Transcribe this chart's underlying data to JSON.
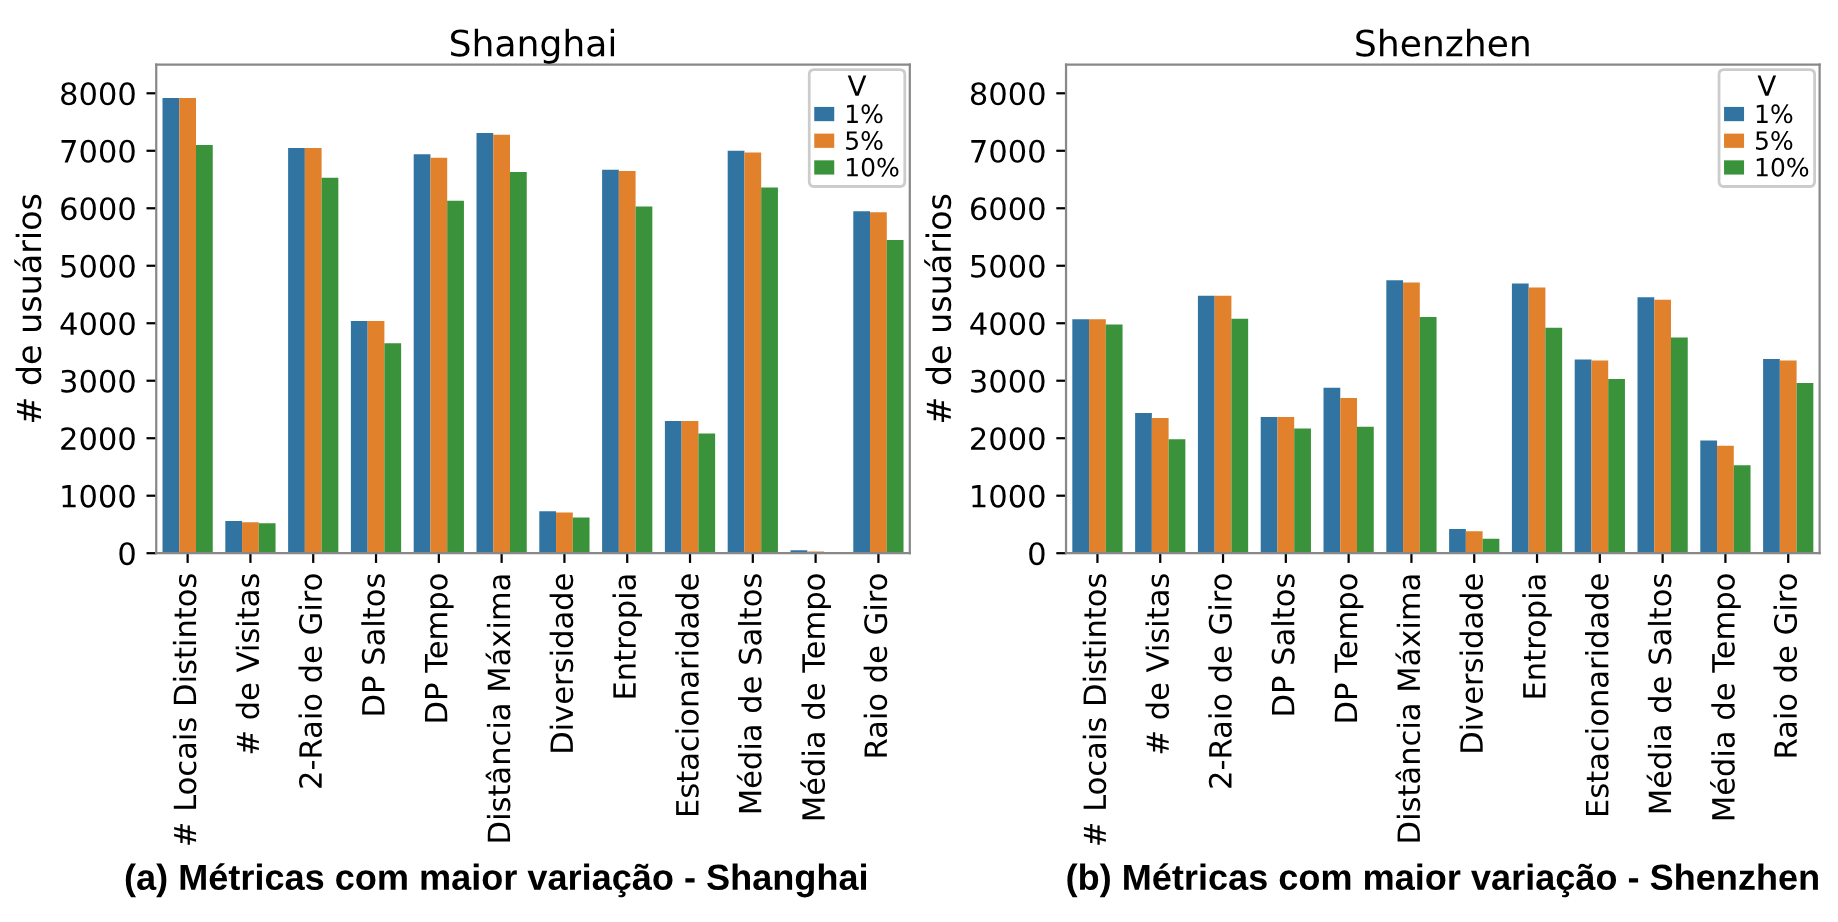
{
  "chart_data": [
    {
      "type": "bar",
      "title": "Shanghai",
      "ylabel": "# de usuários",
      "legend_title": "V",
      "legend": "top right",
      "grid": false,
      "categories": [
        "# Locais Distintos",
        "# de Visitas",
        "2-Raio de Giro",
        "DP Saltos",
        "DP Tempo",
        "Distância Máxima",
        "Diversidade",
        "Entropia",
        "Estacionaridade",
        "Média de Saltos",
        "Média de Tempo",
        "Raio de Giro"
      ],
      "ylim": [
        0,
        8500
      ],
      "yticks": [
        0,
        1000,
        2000,
        3000,
        4000,
        5000,
        6000,
        7000,
        8000
      ],
      "series": [
        {
          "name": "1%",
          "color": "#3274a1",
          "values": [
            7920,
            560,
            7050,
            4040,
            6940,
            7310,
            730,
            6670,
            2300,
            7000,
            50,
            5950
          ]
        },
        {
          "name": "5%",
          "color": "#e1812c",
          "values": [
            7920,
            540,
            7050,
            4040,
            6880,
            7280,
            710,
            6650,
            2300,
            6970,
            30,
            5930
          ]
        },
        {
          "name": "10%",
          "color": "#3a923a",
          "values": [
            7100,
            520,
            6530,
            3650,
            6130,
            6630,
            620,
            6030,
            2080,
            6360,
            20,
            5450
          ]
        }
      ],
      "annotations": [
        "(a) Métricas com maior variação - Shanghai"
      ]
    },
    {
      "type": "bar",
      "title": "Shenzhen",
      "ylabel": "# de usuários",
      "legend_title": "V",
      "legend": "top right",
      "grid": false,
      "categories": [
        "# Locais Distintos",
        "# de Visitas",
        "2-Raio de Giro",
        "DP Saltos",
        "DP Tempo",
        "Distância Máxima",
        "Diversidade",
        "Entropia",
        "Estacionaridade",
        "Média de Saltos",
        "Média de Tempo",
        "Raio de Giro"
      ],
      "ylim": [
        0,
        8500
      ],
      "yticks": [
        0,
        1000,
        2000,
        3000,
        4000,
        5000,
        6000,
        7000,
        8000
      ],
      "series": [
        {
          "name": "1%",
          "color": "#3274a1",
          "values": [
            4070,
            2440,
            4480,
            2370,
            2880,
            4750,
            420,
            4690,
            3370,
            4450,
            1960,
            3380
          ]
        },
        {
          "name": "5%",
          "color": "#e1812c",
          "values": [
            4070,
            2350,
            4480,
            2370,
            2700,
            4710,
            380,
            4620,
            3350,
            4410,
            1870,
            3350
          ]
        },
        {
          "name": "10%",
          "color": "#3a923a",
          "values": [
            3980,
            1980,
            4080,
            2170,
            2200,
            4110,
            250,
            3920,
            3030,
            3750,
            1530,
            2960
          ]
        }
      ],
      "annotations": [
        "(b) Métricas com maior variação - Shenzhen"
      ]
    }
  ]
}
